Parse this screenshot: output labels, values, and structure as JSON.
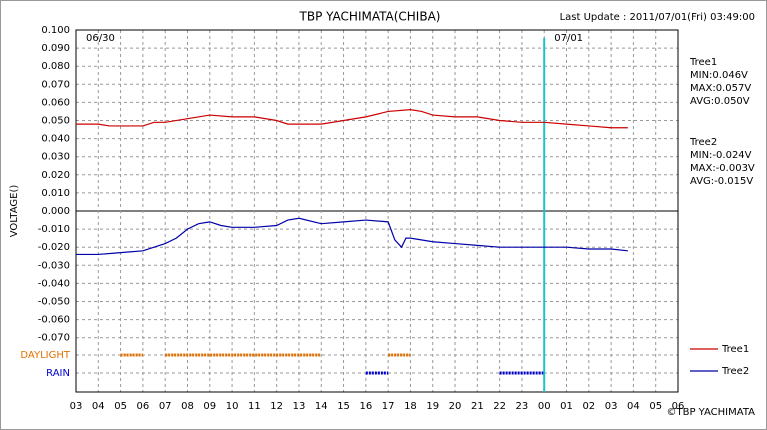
{
  "chart_data": {
    "type": "line",
    "title": "TBP YACHIMATA(CHIBA)",
    "subtitle": "Last Update : 2011/07/01(Fri) 03:49:00",
    "y_label": "VOLTAGE()",
    "credit": "©TBP YACHIMATA",
    "xlim": [
      0,
      27
    ],
    "xticks": [
      {
        "value": 0,
        "label": "03"
      },
      {
        "value": 1,
        "label": "04"
      },
      {
        "value": 2,
        "label": "05"
      },
      {
        "value": 3,
        "label": "06"
      },
      {
        "value": 4,
        "label": "07"
      },
      {
        "value": 5,
        "label": "08"
      },
      {
        "value": 6,
        "label": "09"
      },
      {
        "value": 7,
        "label": "10"
      },
      {
        "value": 8,
        "label": "11"
      },
      {
        "value": 9,
        "label": "12"
      },
      {
        "value": 10,
        "label": "13"
      },
      {
        "value": 11,
        "label": "14"
      },
      {
        "value": 12,
        "label": "15"
      },
      {
        "value": 13,
        "label": "16"
      },
      {
        "value": 14,
        "label": "17"
      },
      {
        "value": 15,
        "label": "18"
      },
      {
        "value": 16,
        "label": "19"
      },
      {
        "value": 17,
        "label": "20"
      },
      {
        "value": 18,
        "label": "21"
      },
      {
        "value": 19,
        "label": "22"
      },
      {
        "value": 20,
        "label": "23"
      },
      {
        "value": 21,
        "label": "00"
      },
      {
        "value": 22,
        "label": "01"
      },
      {
        "value": 23,
        "label": "02"
      },
      {
        "value": 24,
        "label": "03"
      },
      {
        "value": 25,
        "label": "04"
      },
      {
        "value": 26,
        "label": "05"
      },
      {
        "value": 27,
        "label": "06"
      }
    ],
    "ylim": [
      -0.1,
      0.1
    ],
    "yticks": [
      {
        "value": 0.1,
        "label": "0.100"
      },
      {
        "value": 0.09,
        "label": "0.090"
      },
      {
        "value": 0.08,
        "label": "0.080"
      },
      {
        "value": 0.07,
        "label": "0.070"
      },
      {
        "value": 0.06,
        "label": "0.060"
      },
      {
        "value": 0.05,
        "label": "0.050"
      },
      {
        "value": 0.04,
        "label": "0.040"
      },
      {
        "value": 0.03,
        "label": "0.030"
      },
      {
        "value": 0.02,
        "label": "0.020"
      },
      {
        "value": 0.01,
        "label": "0.010"
      },
      {
        "value": 0,
        "label": "0.000"
      },
      {
        "value": -0.01,
        "label": "-0.010"
      },
      {
        "value": -0.02,
        "label": "-0.020"
      },
      {
        "value": -0.03,
        "label": "-0.030"
      },
      {
        "value": -0.04,
        "label": "-0.040"
      },
      {
        "value": -0.05,
        "label": "-0.050"
      },
      {
        "value": -0.06,
        "label": "-0.060"
      },
      {
        "value": -0.07,
        "label": "-0.070"
      }
    ],
    "grid": true,
    "date_labels": [
      {
        "x": 0,
        "label": "06/30"
      },
      {
        "x": 21,
        "label": "07/01"
      }
    ],
    "current_x": 21,
    "series": [
      {
        "name": "Tree1",
        "color": "#cc0000",
        "x": [
          0,
          1,
          1.5,
          2,
          3,
          3.5,
          4,
          5,
          6,
          7,
          8,
          9,
          9.5,
          10,
          11,
          12,
          13,
          14,
          15,
          15.5,
          16,
          17,
          18,
          19,
          20,
          21,
          22,
          23,
          24,
          24.75
        ],
        "values": [
          0.048,
          0.048,
          0.047,
          0.047,
          0.047,
          0.049,
          0.049,
          0.051,
          0.053,
          0.052,
          0.052,
          0.05,
          0.048,
          0.048,
          0.048,
          0.05,
          0.052,
          0.055,
          0.056,
          0.055,
          0.053,
          0.052,
          0.052,
          0.05,
          0.049,
          0.049,
          0.048,
          0.047,
          0.046,
          0.046
        ]
      },
      {
        "name": "Tree2",
        "color": "#0000aa",
        "x": [
          0,
          1,
          2,
          3,
          3.5,
          4,
          4.5,
          5,
          5.5,
          6,
          6.5,
          7,
          8,
          9,
          9.5,
          10,
          11,
          12,
          13,
          14,
          14.3,
          14.6,
          14.8,
          15,
          16,
          17,
          18,
          19,
          20,
          21,
          22,
          23,
          24,
          24.75
        ],
        "values": [
          -0.024,
          -0.024,
          -0.023,
          -0.022,
          -0.02,
          -0.018,
          -0.015,
          -0.01,
          -0.007,
          -0.006,
          -0.008,
          -0.009,
          -0.009,
          -0.008,
          -0.005,
          -0.004,
          -0.007,
          -0.006,
          -0.005,
          -0.006,
          -0.016,
          -0.02,
          -0.015,
          -0.015,
          -0.017,
          -0.018,
          -0.019,
          -0.02,
          -0.02,
          -0.02,
          -0.02,
          -0.021,
          -0.021,
          -0.022
        ]
      }
    ],
    "bands": [
      {
        "label": "DAYLIGHT",
        "color": "#e07000",
        "spans": [
          [
            2,
            3
          ],
          [
            4,
            11
          ],
          [
            14,
            15
          ]
        ]
      },
      {
        "label": "RAIN",
        "color": "#0000cc",
        "spans": [
          [
            13,
            14
          ],
          [
            19,
            21
          ]
        ]
      }
    ],
    "stats": [
      {
        "name": "Tree1",
        "lines": [
          "MIN:0.046V",
          "MAX:0.057V",
          "AVG:0.050V"
        ]
      },
      {
        "name": "Tree2",
        "lines": [
          "MIN:-0.024V",
          "MAX:-0.003V",
          "AVG:-0.015V"
        ]
      }
    ]
  }
}
